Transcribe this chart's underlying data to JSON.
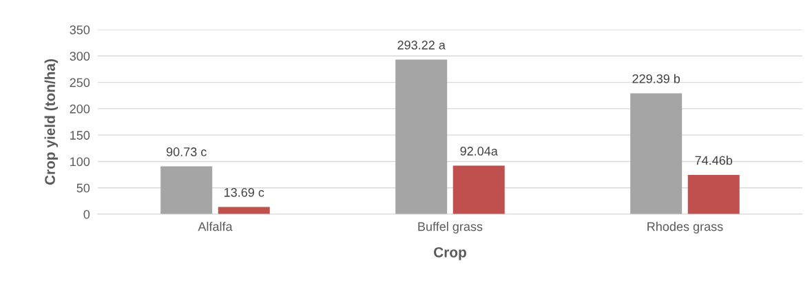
{
  "chart_data": {
    "type": "bar",
    "xlabel": "Crop",
    "ylabel": "Crop yield (ton/ha)",
    "categories": [
      "Alfalfa",
      "Buffel grass",
      "Rhodes grass"
    ],
    "series": [
      {
        "color": "#a5a5a5",
        "values": [
          90.73,
          293.22,
          229.39
        ],
        "value_labels": [
          "90.73 c",
          "293.22 a",
          "229.39 b"
        ]
      },
      {
        "color": "#c0504d",
        "values": [
          13.69,
          92.04,
          74.46
        ],
        "value_labels": [
          "13.69 c",
          "92.04a",
          "74.46b"
        ]
      }
    ],
    "ylim": [
      0,
      350
    ],
    "yticks": [
      0,
      50,
      100,
      150,
      200,
      250,
      300,
      350
    ],
    "grid": "y",
    "legend": false
  }
}
